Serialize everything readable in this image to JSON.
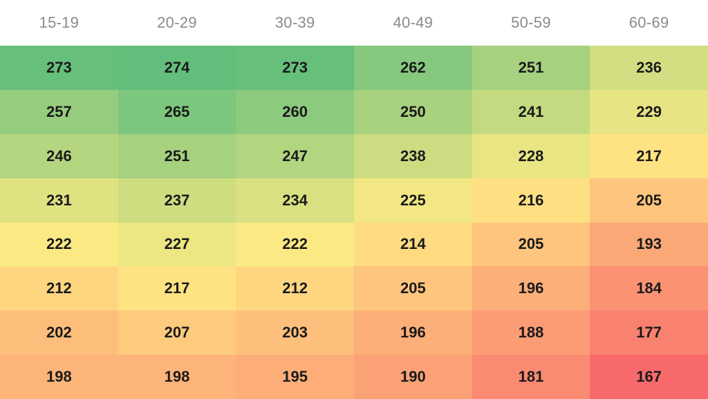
{
  "chart_data": {
    "type": "heatmap",
    "columns": [
      "15-19",
      "20-29",
      "30-39",
      "40-49",
      "50-59",
      "60-69"
    ],
    "rows": [
      [
        273,
        274,
        273,
        262,
        251,
        236
      ],
      [
        257,
        265,
        260,
        250,
        241,
        229
      ],
      [
        246,
        251,
        247,
        238,
        228,
        217
      ],
      [
        231,
        237,
        234,
        225,
        216,
        205
      ],
      [
        222,
        227,
        222,
        214,
        205,
        193
      ],
      [
        212,
        217,
        212,
        205,
        196,
        184
      ],
      [
        202,
        207,
        203,
        196,
        188,
        177
      ],
      [
        198,
        198,
        195,
        190,
        181,
        167
      ]
    ],
    "color_scale": {
      "low": "#f8696b",
      "mid": "#ffeb84",
      "high": "#63be7b"
    }
  }
}
